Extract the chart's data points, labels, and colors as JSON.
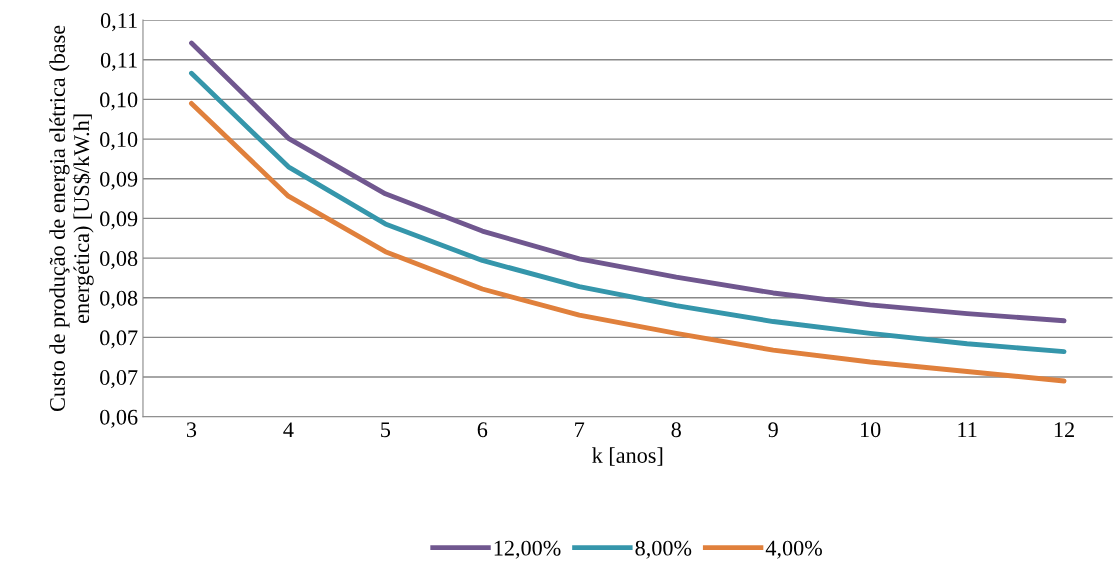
{
  "chart_data": {
    "type": "line",
    "xlabel": "k [anos]",
    "ylabel": "Custo de produção de energia elétrica (base energética) [US$/kW.h]",
    "categories": [
      "3",
      "4",
      "5",
      "6",
      "7",
      "8",
      "9",
      "10",
      "11",
      "12"
    ],
    "series": [
      {
        "name": "12,00%",
        "color": "#70578f",
        "values": [
          0.1071,
          0.0951,
          0.0881,
          0.0834,
          0.0799,
          0.0776,
          0.0756,
          0.0741,
          0.073,
          0.0721
        ]
      },
      {
        "name": "8,00%",
        "color": "#3596ab",
        "values": [
          0.1033,
          0.0915,
          0.0843,
          0.0797,
          0.0764,
          0.074,
          0.072,
          0.0705,
          0.0692,
          0.0682
        ]
      },
      {
        "name": "4,00%",
        "color": "#e0803c",
        "values": [
          0.0995,
          0.0878,
          0.0808,
          0.0761,
          0.0728,
          0.0705,
          0.0684,
          0.0669,
          0.0657,
          0.0645
        ]
      }
    ],
    "ylim": [
      0.06,
      0.11
    ],
    "yticks": [
      {
        "value": 0.06,
        "label": "0,06"
      },
      {
        "value": 0.065,
        "label": "0,07"
      },
      {
        "value": 0.07,
        "label": "0,07"
      },
      {
        "value": 0.075,
        "label": "0,08"
      },
      {
        "value": 0.08,
        "label": "0,08"
      },
      {
        "value": 0.085,
        "label": "0,09"
      },
      {
        "value": 0.09,
        "label": "0,09"
      },
      {
        "value": 0.095,
        "label": "0,10"
      },
      {
        "value": 0.1,
        "label": "0,10"
      },
      {
        "value": 0.105,
        "label": "0,11"
      },
      {
        "value": 0.11,
        "label": "0,11"
      }
    ],
    "grid": "y",
    "legend": "bottom",
    "marker": "none",
    "line_style": "solid"
  }
}
